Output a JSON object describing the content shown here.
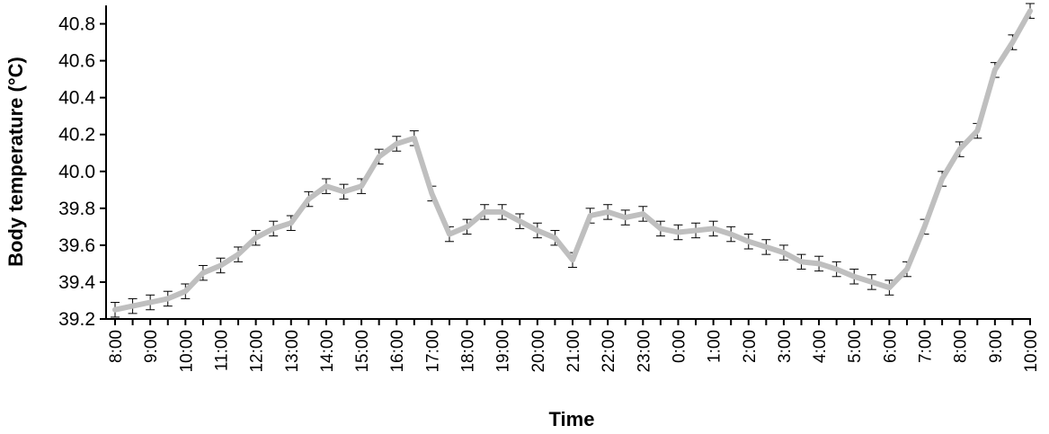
{
  "chart_data": {
    "type": "line",
    "title": "",
    "xlabel": "Time",
    "ylabel": "Body temperature (°C)",
    "ylim": [
      39.2,
      40.9
    ],
    "y_ticks": [
      "39.2",
      "39.4",
      "39.6",
      "39.8",
      "40.0",
      "40.2",
      "40.4",
      "40.6",
      "40.8"
    ],
    "x_ticks": [
      "8:00",
      "9:00",
      "10:00",
      "11:00",
      "12:00",
      "13:00",
      "14:00",
      "15:00",
      "16:00",
      "17:00",
      "18:00",
      "19:00",
      "20:00",
      "21:00",
      "22:00",
      "23:00",
      "0:00",
      "1:00",
      "2:00",
      "3:00",
      "4:00",
      "5:00",
      "6:00",
      "7:00",
      "8:00",
      "9:00",
      "10:00"
    ],
    "grid": false,
    "line_color": "#bfbfbf",
    "error_bar_color": "#000000",
    "series": [
      {
        "x": [
          0,
          0.5,
          1,
          1.5,
          2,
          2.5,
          3,
          3.5,
          4,
          4.5,
          5,
          5.5,
          6,
          6.5,
          7,
          7.5,
          8,
          8.5,
          9,
          9.5,
          10,
          10.5,
          11,
          11.5,
          12,
          12.5,
          13,
          13.5,
          14,
          14.5,
          15,
          15.5,
          16,
          16.5,
          17,
          17.5,
          18,
          18.5,
          19,
          19.5,
          20,
          20.5,
          21,
          21.5,
          22,
          22.5,
          23,
          23.5,
          24,
          24.5,
          25,
          25.5,
          26
        ],
        "values": [
          39.25,
          39.27,
          39.29,
          39.31,
          39.35,
          39.45,
          39.49,
          39.55,
          39.64,
          39.69,
          39.72,
          39.85,
          39.92,
          39.89,
          39.92,
          40.08,
          40.15,
          40.18,
          39.88,
          39.66,
          39.7,
          39.78,
          39.78,
          39.73,
          39.68,
          39.64,
          39.52,
          39.76,
          39.78,
          39.75,
          39.77,
          39.69,
          39.67,
          39.68,
          39.69,
          39.66,
          39.62,
          39.59,
          39.56,
          39.51,
          39.5,
          39.47,
          39.43,
          39.4,
          39.37,
          39.47,
          39.7,
          39.96,
          40.12,
          40.22,
          40.55,
          40.7,
          40.87
        ],
        "errors": [
          0.04,
          0.04,
          0.04,
          0.04,
          0.04,
          0.04,
          0.04,
          0.04,
          0.04,
          0.04,
          0.04,
          0.04,
          0.04,
          0.04,
          0.04,
          0.04,
          0.04,
          0.04,
          0.04,
          0.04,
          0.04,
          0.04,
          0.04,
          0.04,
          0.04,
          0.04,
          0.04,
          0.04,
          0.04,
          0.04,
          0.04,
          0.04,
          0.04,
          0.04,
          0.04,
          0.04,
          0.04,
          0.04,
          0.04,
          0.04,
          0.04,
          0.04,
          0.04,
          0.04,
          0.04,
          0.04,
          0.04,
          0.04,
          0.04,
          0.04,
          0.04,
          0.04,
          0.04
        ]
      }
    ]
  }
}
